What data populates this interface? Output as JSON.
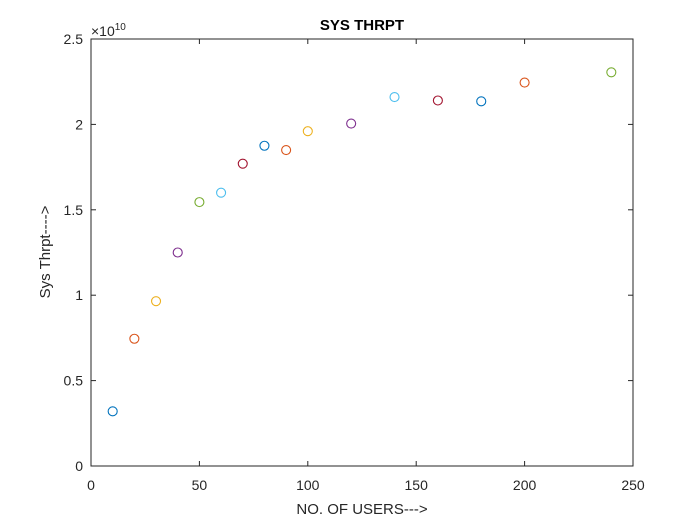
{
  "chart_data": {
    "type": "scatter",
    "title": "SYS THRPT",
    "xlabel": "NO. OF USERS--->",
    "ylabel": "Sys Thrpt---->",
    "xlim": [
      0,
      250
    ],
    "ylim": [
      0,
      2.5
    ],
    "x_ticks": [
      0,
      50,
      100,
      150,
      200,
      250
    ],
    "x_tick_labels": [
      "0",
      "50",
      "100",
      "150",
      "200",
      "250"
    ],
    "y_ticks": [
      0,
      0.5,
      1,
      1.5,
      2,
      2.5
    ],
    "y_tick_labels": [
      "0",
      "0.5",
      "1",
      "1.5",
      "2",
      "2.5"
    ],
    "y_exponent_label": "×10",
    "y_exponent_power": "10",
    "grid": false,
    "points": [
      {
        "x": 10,
        "y": 0.32,
        "color": "#0072BD"
      },
      {
        "x": 20,
        "y": 0.745,
        "color": "#D95319"
      },
      {
        "x": 30,
        "y": 0.965,
        "color": "#EDB120"
      },
      {
        "x": 40,
        "y": 1.25,
        "color": "#7E2F8E"
      },
      {
        "x": 50,
        "y": 1.545,
        "color": "#77AC30"
      },
      {
        "x": 60,
        "y": 1.6,
        "color": "#4DBEEE"
      },
      {
        "x": 70,
        "y": 1.77,
        "color": "#A2142F"
      },
      {
        "x": 80,
        "y": 1.875,
        "color": "#0072BD"
      },
      {
        "x": 90,
        "y": 1.85,
        "color": "#D95319"
      },
      {
        "x": 100,
        "y": 1.96,
        "color": "#EDB120"
      },
      {
        "x": 120,
        "y": 2.005,
        "color": "#7E2F8E"
      },
      {
        "x": 140,
        "y": 2.16,
        "color": "#4DBEEE"
      },
      {
        "x": 160,
        "y": 2.14,
        "color": "#A2142F"
      },
      {
        "x": 180,
        "y": 2.135,
        "color": "#0072BD"
      },
      {
        "x": 200,
        "y": 2.245,
        "color": "#D95319"
      },
      {
        "x": 240,
        "y": 2.305,
        "color": "#77AC30"
      }
    ]
  }
}
